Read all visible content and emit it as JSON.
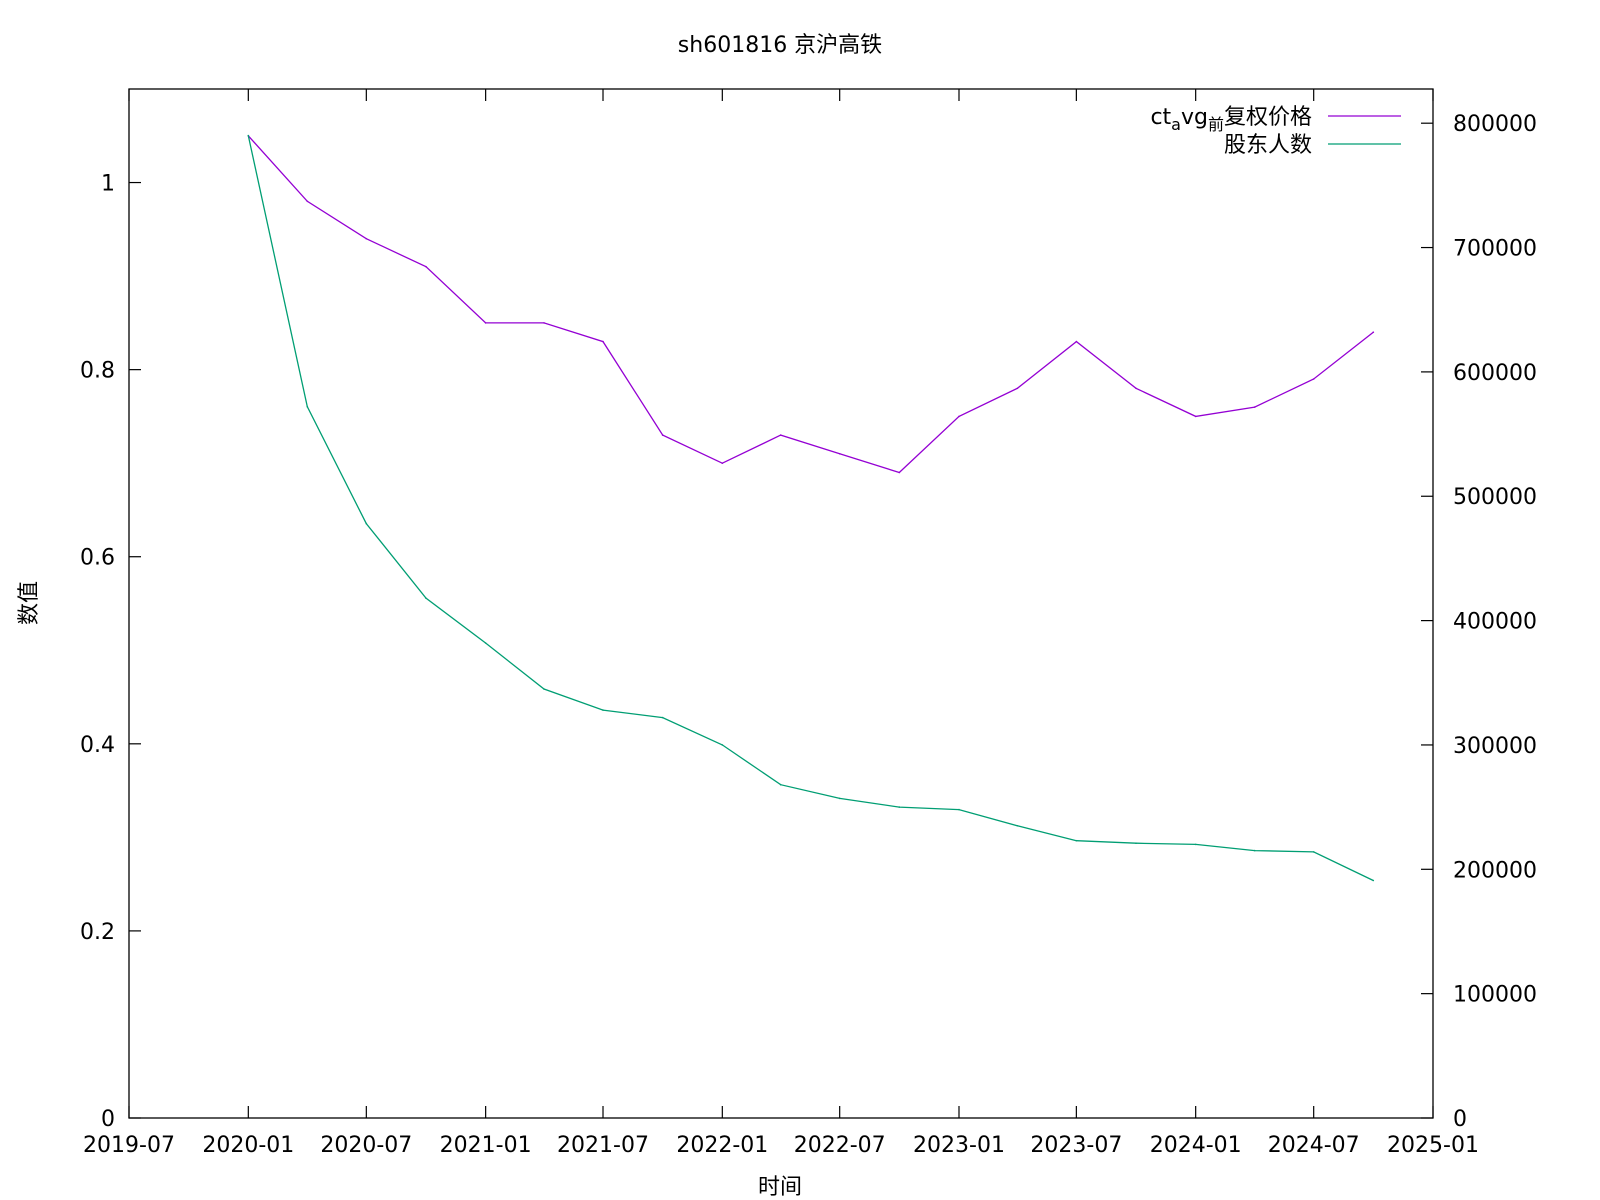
{
  "chart_data": {
    "type": "line",
    "title": "sh601816 京沪高铁",
    "xlabel": "时间",
    "ylabel": "数值",
    "x_ticks": [
      "2019-07",
      "2020-01",
      "2020-07",
      "2021-01",
      "2021-07",
      "2022-01",
      "2022-07",
      "2023-01",
      "2023-07",
      "2024-01",
      "2024-07",
      "2025-01"
    ],
    "y_left_ticks": [
      "0",
      "0.2",
      "0.4",
      "0.6",
      "0.8",
      "1"
    ],
    "y_right_ticks": [
      "0",
      "100000",
      "200000",
      "300000",
      "400000",
      "500000",
      "600000",
      "700000",
      "800000"
    ],
    "y_left_range": [
      0,
      1.1
    ],
    "y_right_range": [
      0,
      827500
    ],
    "x_range": [
      "2019-07-01",
      "2025-01-01"
    ],
    "legend_position": "top-right",
    "series": [
      {
        "name": "ct_avg_前复权价格",
        "legend_parts": {
          "base": "ct",
          "sub1": "a",
          "mid": "vg",
          "sub2": "前",
          "tail": "复权价格"
        },
        "axis": "left",
        "color": "#9400d3",
        "x": [
          "2020-01-01",
          "2020-04-01",
          "2020-07-01",
          "2020-10-01",
          "2021-01-01",
          "2021-04-01",
          "2021-07-01",
          "2021-10-01",
          "2022-01-01",
          "2022-04-01",
          "2022-07-01",
          "2022-10-01",
          "2023-01-01",
          "2023-04-01",
          "2023-07-01",
          "2023-10-01",
          "2024-01-01",
          "2024-04-01",
          "2024-07-01",
          "2024-10-01"
        ],
        "values": [
          1.05,
          0.98,
          0.94,
          0.91,
          0.85,
          0.85,
          0.83,
          0.73,
          0.7,
          0.73,
          0.71,
          0.69,
          0.75,
          0.78,
          0.83,
          0.78,
          0.75,
          0.76,
          0.79,
          0.84
        ]
      },
      {
        "name": "股东人数",
        "axis": "right",
        "color": "#009e73",
        "x": [
          "2020-01-01",
          "2020-04-01",
          "2020-07-01",
          "2020-10-01",
          "2021-01-01",
          "2021-04-01",
          "2021-07-01",
          "2021-10-01",
          "2022-01-01",
          "2022-04-01",
          "2022-07-01",
          "2022-10-01",
          "2023-01-01",
          "2023-04-01",
          "2023-07-01",
          "2023-10-01",
          "2024-01-01",
          "2024-04-01",
          "2024-07-01",
          "2024-10-01"
        ],
        "values": [
          790000,
          572000,
          478000,
          418000,
          382000,
          345000,
          328000,
          322000,
          300000,
          268000,
          257000,
          250000,
          248000,
          235000,
          223000,
          221000,
          220000,
          215000,
          214000,
          191000
        ]
      }
    ]
  }
}
